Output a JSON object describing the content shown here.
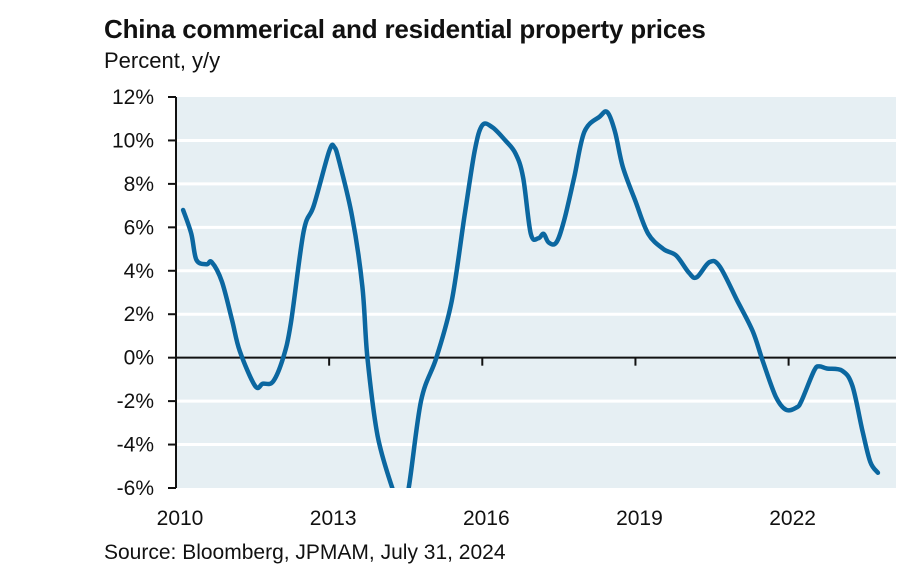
{
  "chart_data": {
    "type": "line",
    "title": "China commerical and residential property prices",
    "subtitle": "Percent, y/y",
    "xlabel": "",
    "ylabel": "Percent, y/y",
    "source": "Source: Bloomberg, JPMAM, July 31, 2024",
    "xlim": [
      2010,
      2024.1
    ],
    "ylim": [
      -6,
      12
    ],
    "x_ticks": [
      2010,
      2013,
      2016,
      2019,
      2022
    ],
    "x_tick_labels": [
      "2010",
      "2013",
      "2016",
      "2019",
      "2022"
    ],
    "y_ticks": [
      12,
      10,
      8,
      6,
      4,
      2,
      0,
      -2,
      -4,
      -6
    ],
    "y_tick_labels": [
      "12%",
      "10%",
      "8%",
      "6%",
      "4%",
      "2%",
      "0%",
      "-2%",
      "-4%",
      "-6%"
    ],
    "grid": true,
    "legend": "none",
    "colors": {
      "line": "#0b67a0",
      "plot_bg": "#e6eff3",
      "grid": "#ffffff",
      "axis": "#111111"
    },
    "series": [
      {
        "name": "China commercial and residential property prices",
        "x": [
          2010.14,
          2010.3,
          2010.4,
          2010.6,
          2010.7,
          2010.9,
          2011.1,
          2011.25,
          2011.55,
          2011.7,
          2011.9,
          2012.1,
          2012.25,
          2012.5,
          2012.7,
          2013.0,
          2013.1,
          2013.2,
          2013.45,
          2013.65,
          2013.75,
          2013.95,
          2014.25,
          2014.4,
          2014.55,
          2014.8,
          2015.1,
          2015.4,
          2015.65,
          2015.85,
          2016.0,
          2016.2,
          2016.45,
          2016.65,
          2016.8,
          2016.95,
          2017.1,
          2017.2,
          2017.3,
          2017.45,
          2017.6,
          2017.8,
          2018.0,
          2018.3,
          2018.45,
          2018.6,
          2018.75,
          2019.0,
          2019.25,
          2019.55,
          2019.8,
          2020.05,
          2020.2,
          2020.45,
          2020.65,
          2021.0,
          2021.3,
          2021.5,
          2021.75,
          2021.95,
          2022.15,
          2022.25,
          2022.5,
          2022.6,
          2022.75,
          2023.05,
          2023.25,
          2023.45,
          2023.6,
          2023.75
        ],
        "values": [
          6.8,
          5.7,
          4.5,
          4.3,
          4.4,
          3.5,
          1.7,
          0.3,
          -1.3,
          -1.2,
          -1.1,
          0.0,
          1.6,
          5.8,
          7.0,
          9.5,
          9.7,
          9.0,
          6.5,
          3.3,
          0.0,
          -3.6,
          -6.1,
          -7.0,
          -6.1,
          -2.0,
          0.0,
          2.6,
          6.5,
          9.5,
          10.7,
          10.6,
          10.0,
          9.4,
          8.3,
          5.7,
          5.5,
          5.7,
          5.3,
          5.3,
          6.3,
          8.3,
          10.4,
          11.1,
          11.3,
          10.4,
          8.8,
          7.2,
          5.7,
          5.0,
          4.7,
          3.9,
          3.7,
          4.4,
          4.2,
          2.6,
          1.2,
          -0.2,
          -1.8,
          -2.4,
          -2.3,
          -2.0,
          -0.6,
          -0.4,
          -0.5,
          -0.6,
          -1.3,
          -3.4,
          -4.8,
          -5.3
        ]
      }
    ]
  }
}
